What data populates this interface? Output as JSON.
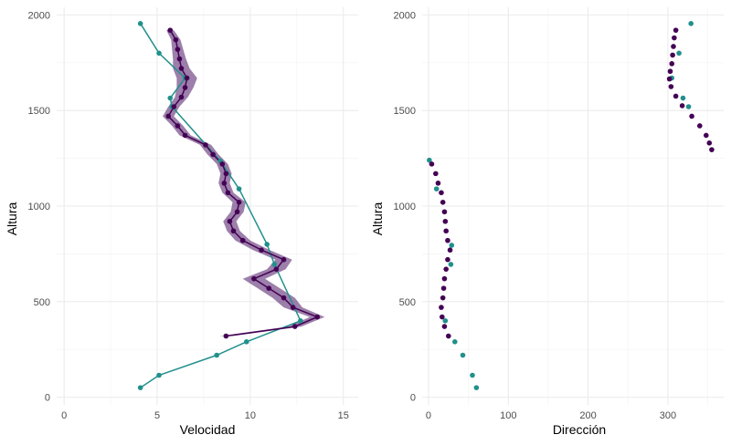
{
  "chart_data": [
    {
      "type": "line",
      "xlabel": "Velocidad",
      "ylabel": "Altura",
      "xlim": [
        -0.4,
        15.8
      ],
      "ylim": [
        -40,
        2040
      ],
      "xticks": [
        0,
        5,
        10,
        15
      ],
      "yticks": [
        0,
        500,
        1000,
        1500,
        2000
      ],
      "grid": true,
      "legend": "none",
      "colors": {
        "series_a": "#440154",
        "series_b": "#21908c",
        "band": "#5a2a72"
      },
      "series": [
        {
          "style": "line+points+ribbon",
          "points": [
            {
              "x": 8.7,
              "y": 320
            },
            {
              "x": 12.4,
              "y": 370
            },
            {
              "x": 13.6,
              "y": 420
            },
            {
              "x": 12.3,
              "y": 470
            },
            {
              "x": 11.8,
              "y": 520
            },
            {
              "x": 11.0,
              "y": 570
            },
            {
              "x": 10.2,
              "y": 620
            },
            {
              "x": 11.4,
              "y": 670
            },
            {
              "x": 11.8,
              "y": 720
            },
            {
              "x": 10.6,
              "y": 770
            },
            {
              "x": 9.6,
              "y": 820
            },
            {
              "x": 9.1,
              "y": 870
            },
            {
              "x": 8.9,
              "y": 920
            },
            {
              "x": 9.3,
              "y": 970
            },
            {
              "x": 9.4,
              "y": 1020
            },
            {
              "x": 8.8,
              "y": 1070
            },
            {
              "x": 8.6,
              "y": 1120
            },
            {
              "x": 8.7,
              "y": 1170
            },
            {
              "x": 8.5,
              "y": 1220
            },
            {
              "x": 8.0,
              "y": 1270
            },
            {
              "x": 7.6,
              "y": 1320
            },
            {
              "x": 6.5,
              "y": 1370
            },
            {
              "x": 6.1,
              "y": 1420
            },
            {
              "x": 5.6,
              "y": 1470
            },
            {
              "x": 5.9,
              "y": 1520
            },
            {
              "x": 6.3,
              "y": 1570
            },
            {
              "x": 6.5,
              "y": 1620
            },
            {
              "x": 6.6,
              "y": 1670
            },
            {
              "x": 6.3,
              "y": 1720
            },
            {
              "x": 6.2,
              "y": 1770
            },
            {
              "x": 6.1,
              "y": 1820
            },
            {
              "x": 6.0,
              "y": 1870
            },
            {
              "x": 5.7,
              "y": 1920
            }
          ],
          "band": [
            0.35,
            0.35,
            0.4,
            0.5,
            0.6,
            0.6,
            0.6,
            0.5,
            0.45,
            0.45,
            0.4,
            0.35,
            0.35,
            0.35,
            0.35,
            0.3,
            0.3,
            0.3,
            0.3,
            0.3,
            0.3,
            0.3,
            0.3,
            0.3,
            0.3,
            0.35,
            0.45,
            0.55,
            0.45,
            0.35,
            0.3,
            0.25,
            0.2
          ]
        },
        {
          "style": "line+points",
          "points": [
            {
              "x": 4.1,
              "y": 50
            },
            {
              "x": 5.1,
              "y": 115
            },
            {
              "x": 8.2,
              "y": 220
            },
            {
              "x": 9.8,
              "y": 290
            },
            {
              "x": 12.7,
              "y": 400
            },
            {
              "x": 11.3,
              "y": 695
            },
            {
              "x": 10.9,
              "y": 800
            },
            {
              "x": 9.4,
              "y": 1090
            },
            {
              "x": 8.4,
              "y": 1235
            },
            {
              "x": 5.8,
              "y": 1520
            },
            {
              "x": 5.7,
              "y": 1565
            },
            {
              "x": 6.5,
              "y": 1670
            },
            {
              "x": 5.1,
              "y": 1800
            },
            {
              "x": 4.1,
              "y": 1955
            }
          ]
        }
      ]
    },
    {
      "type": "scatter",
      "xlabel": "Dirección",
      "ylabel": "Altura",
      "xlim": [
        -8,
        370
      ],
      "ylim": [
        -40,
        2040
      ],
      "xticks": [
        0,
        100,
        200,
        300
      ],
      "yticks": [
        0,
        500,
        1000,
        1500,
        2000
      ],
      "grid": true,
      "legend": "none",
      "series": [
        {
          "points": [
            {
              "x": 310,
              "y": 1920
            },
            {
              "x": 308,
              "y": 1880
            },
            {
              "x": 307,
              "y": 1835
            },
            {
              "x": 306,
              "y": 1790
            },
            {
              "x": 305,
              "y": 1745
            },
            {
              "x": 303,
              "y": 1705
            },
            {
              "x": 302,
              "y": 1665
            },
            {
              "x": 304,
              "y": 1625
            },
            {
              "x": 310,
              "y": 1575
            },
            {
              "x": 318,
              "y": 1525
            },
            {
              "x": 330,
              "y": 1470
            },
            {
              "x": 340,
              "y": 1420
            },
            {
              "x": 348,
              "y": 1370
            },
            {
              "x": 352,
              "y": 1330
            },
            {
              "x": 355,
              "y": 1295
            },
            {
              "x": 4,
              "y": 1220
            },
            {
              "x": 9,
              "y": 1170
            },
            {
              "x": 12,
              "y": 1120
            },
            {
              "x": 16,
              "y": 1070
            },
            {
              "x": 18,
              "y": 1020
            },
            {
              "x": 20,
              "y": 970
            },
            {
              "x": 21,
              "y": 920
            },
            {
              "x": 22,
              "y": 870
            },
            {
              "x": 24,
              "y": 820
            },
            {
              "x": 27,
              "y": 770
            },
            {
              "x": 24,
              "y": 720
            },
            {
              "x": 22,
              "y": 670
            },
            {
              "x": 20,
              "y": 620
            },
            {
              "x": 19,
              "y": 570
            },
            {
              "x": 18,
              "y": 520
            },
            {
              "x": 16,
              "y": 470
            },
            {
              "x": 17,
              "y": 420
            },
            {
              "x": 20,
              "y": 370
            },
            {
              "x": 25,
              "y": 320
            }
          ]
        },
        {
          "points": [
            {
              "x": 329,
              "y": 1955
            },
            {
              "x": 314,
              "y": 1800
            },
            {
              "x": 305,
              "y": 1670
            },
            {
              "x": 319,
              "y": 1565
            },
            {
              "x": 326,
              "y": 1520
            },
            {
              "x": 1,
              "y": 1240
            },
            {
              "x": 10,
              "y": 1090
            },
            {
              "x": 29,
              "y": 795
            },
            {
              "x": 28,
              "y": 695
            },
            {
              "x": 21,
              "y": 400
            },
            {
              "x": 33,
              "y": 290
            },
            {
              "x": 43,
              "y": 220
            },
            {
              "x": 55,
              "y": 115
            },
            {
              "x": 60,
              "y": 50
            }
          ]
        }
      ]
    }
  ]
}
